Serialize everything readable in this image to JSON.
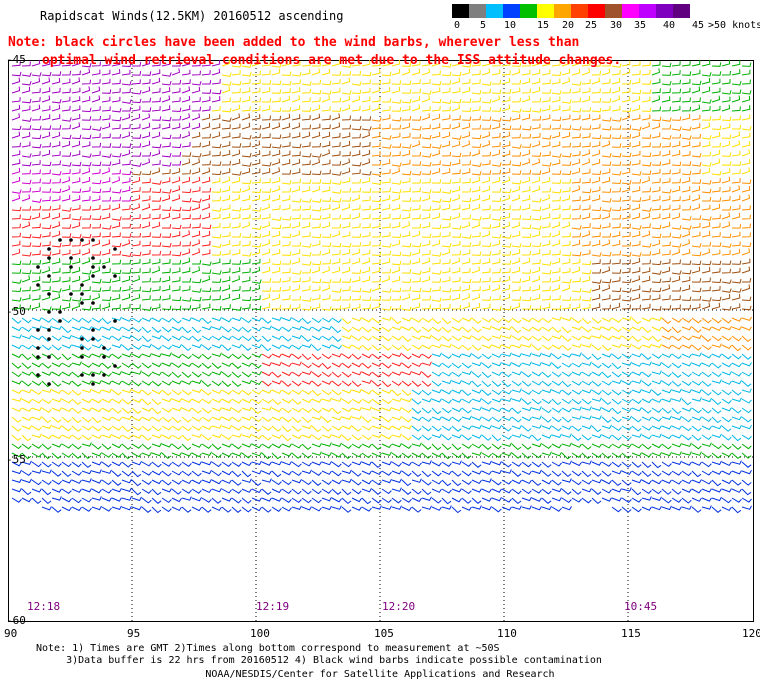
{
  "title": "Rapidscat Winds(12.5KM) 20160512 ascending",
  "note_line1": "Note: black circles have been added to the wind barbs, wherever less than",
  "note_line2": "optimal wind retrieval conditions are met due to the ISS attitude changes.",
  "legend": {
    "colors": [
      "#000000",
      "#7f7f7f",
      "#00bfff",
      "#0040ff",
      "#00c000",
      "#ffff00",
      "#ffa500",
      "#ff4000",
      "#ff0000",
      "#a0522d",
      "#ff00ff",
      "#c000ff",
      "#8000c0",
      "#600080"
    ],
    "labels": [
      "0",
      "5",
      "10",
      "15",
      "20",
      "25",
      "30",
      "35",
      "40",
      "45",
      ">50 knots"
    ]
  },
  "axes": {
    "lat_labels": [
      "-45",
      "-50",
      "-55",
      "-60"
    ],
    "lon_labels": [
      "90",
      "95",
      "100",
      "105",
      "110",
      "115",
      "120"
    ]
  },
  "times": [
    "12:18",
    "12:19",
    "12:20",
    "10:45"
  ],
  "footer_line1": "Note: 1) Times are GMT 2)Times along bottom correspond to measurement at ~50S",
  "footer_line2": "     3)Data buffer is 22 hrs from 20160512 4) Black wind barbs indicate possible contamination",
  "credit": "NOAA/NESDIS/Center for Satellite Applications and Research"
}
